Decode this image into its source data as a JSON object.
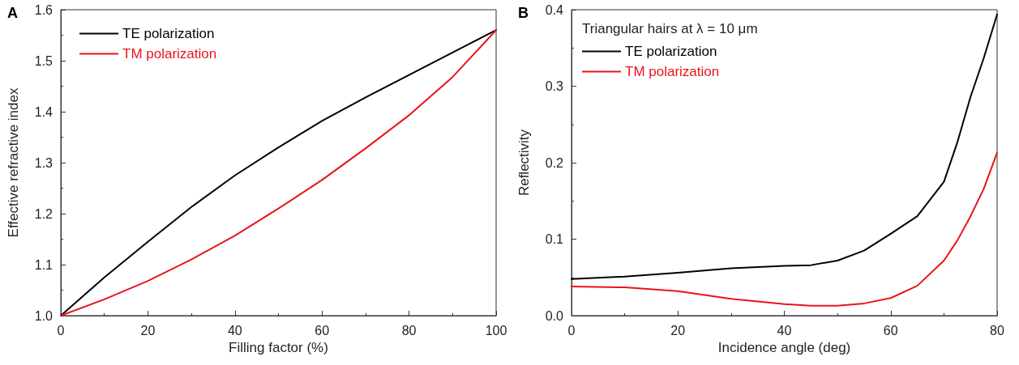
{
  "chart_data": [
    {
      "type": "line",
      "title": "A",
      "xlabel": "Filling factor (%)",
      "ylabel": "Effective refractive index",
      "x": [
        0,
        10,
        20,
        30,
        40,
        50,
        60,
        70,
        80,
        90,
        100
      ],
      "series": [
        {
          "name": "TE polarization",
          "color": "#000000",
          "values": [
            1.0,
            1.075,
            1.145,
            1.213,
            1.275,
            1.33,
            1.382,
            1.428,
            1.472,
            1.516,
            1.56
          ]
        },
        {
          "name": "TM polarization",
          "color": "#e8141a",
          "values": [
            1.0,
            1.032,
            1.068,
            1.11,
            1.157,
            1.21,
            1.266,
            1.328,
            1.393,
            1.468,
            1.56
          ]
        }
      ],
      "xlim": [
        0,
        100
      ],
      "xticks": [
        0,
        20,
        40,
        60,
        80,
        100
      ],
      "ylim": [
        1.0,
        1.6
      ],
      "yticks": [
        {
          "value": 1,
          "label": "1.0"
        },
        1.1,
        1.2,
        1.3,
        1.4,
        1.5,
        1.6
      ],
      "grid": false,
      "legend": "top left",
      "marker": "none",
      "line_style": "solid"
    },
    {
      "type": "line",
      "title": "B",
      "xlabel": "Incidence angle (deg)",
      "ylabel": "Reflectivity",
      "legend_title": "Triangular hairs at λ = 10 μm",
      "x": [
        0,
        10,
        20,
        30,
        40,
        45,
        50,
        55,
        60,
        65,
        70,
        72.5,
        75,
        77.5,
        80
      ],
      "series": [
        {
          "name": "TE polarization",
          "color": "#000000",
          "values": [
            0.048,
            0.051,
            0.056,
            0.062,
            0.065,
            0.066,
            0.072,
            0.085,
            0.107,
            0.13,
            0.175,
            0.226,
            0.286,
            0.337,
            0.394
          ]
        },
        {
          "name": "TM polarization",
          "color": "#e8141a",
          "values": [
            0.038,
            0.037,
            0.032,
            0.022,
            0.015,
            0.013,
            0.013,
            0.016,
            0.023,
            0.039,
            0.072,
            0.098,
            0.13,
            0.166,
            0.213
          ]
        }
      ],
      "xlim": [
        0,
        80
      ],
      "xticks": [
        0,
        20,
        40,
        60,
        80
      ],
      "ylim": [
        0,
        0.4
      ],
      "yticks": [
        {
          "value": 0,
          "label": "0.0"
        },
        0.1,
        0.2,
        0.3,
        0.4
      ],
      "grid": false,
      "legend": "top left",
      "marker": "none",
      "line_style": "solid"
    }
  ]
}
